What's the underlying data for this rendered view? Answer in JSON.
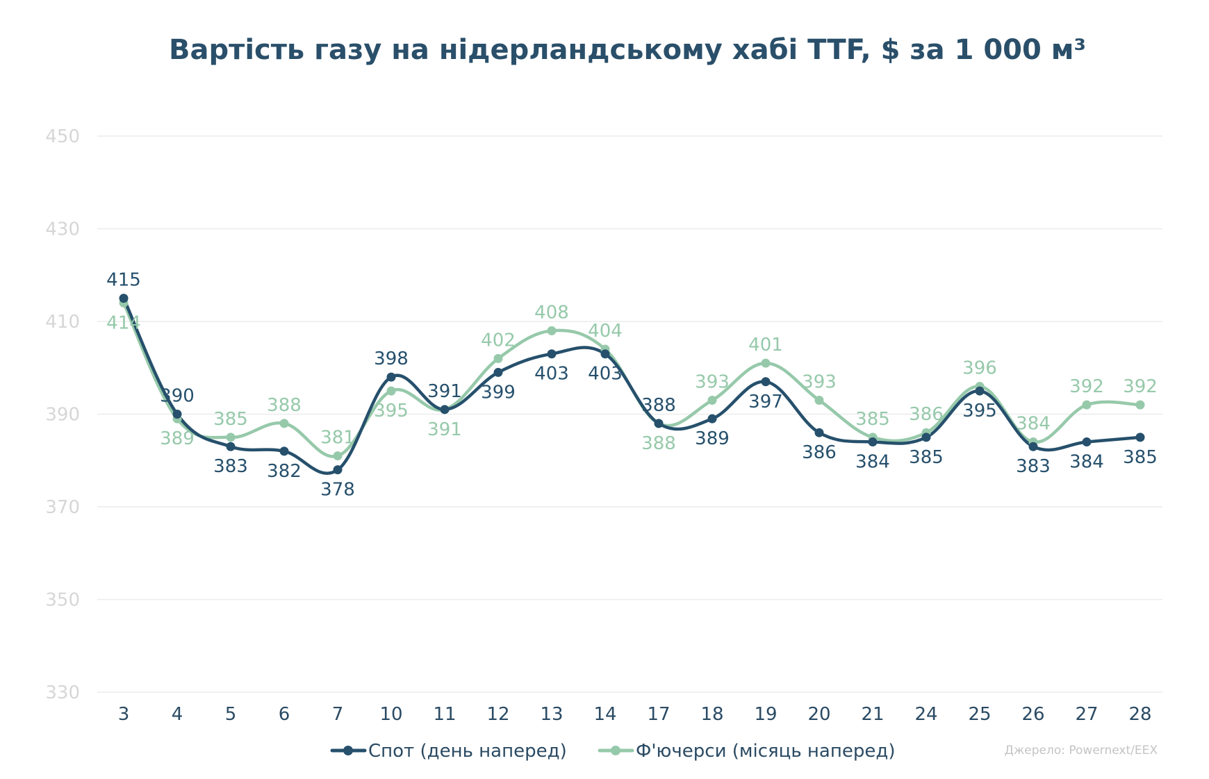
{
  "chart_data": {
    "type": "line",
    "title": "Вартість газу на нідерландському хабі TTF, $ за 1 000 м³",
    "xlabel": "",
    "ylabel": "",
    "ylim": [
      330,
      450
    ],
    "yticks": [
      330,
      350,
      370,
      390,
      410,
      430,
      450
    ],
    "grid": true,
    "legend_position": "bottom",
    "categories": [
      "3",
      "4",
      "5",
      "6",
      "7",
      "10",
      "11",
      "12",
      "13",
      "14",
      "17",
      "18",
      "19",
      "20",
      "21",
      "24",
      "25",
      "26",
      "27",
      "28"
    ],
    "series": [
      {
        "name": "Спот (день наперед)",
        "color": "#26506c",
        "values": [
          415,
          390,
          383,
          382,
          378,
          398,
          391,
          399,
          403,
          403,
          388,
          389,
          397,
          386,
          384,
          385,
          395,
          383,
          384,
          385
        ],
        "value_labels": [
          "415",
          "390",
          "383",
          "382",
          "378",
          "398",
          "391",
          "399",
          "403",
          "403",
          "388",
          "389",
          "397",
          "386",
          "384",
          "385",
          "395",
          "383",
          "384",
          "385"
        ]
      },
      {
        "name": "Ф'ючерси (місяць наперед)",
        "color": "#96c9aa",
        "values": [
          414,
          389,
          385,
          388,
          381,
          395,
          391,
          402,
          408,
          404,
          388,
          393,
          401,
          393,
          385,
          386,
          396,
          384,
          392,
          392
        ],
        "value_labels": [
          "414",
          "389",
          "385",
          "388",
          "381",
          "395",
          "391",
          "402",
          "408",
          "404",
          "388",
          "393",
          "401",
          "393",
          "385",
          "386",
          "396",
          "384",
          "392",
          "392"
        ]
      }
    ],
    "source": "Джерело: Powernext/EEX"
  }
}
